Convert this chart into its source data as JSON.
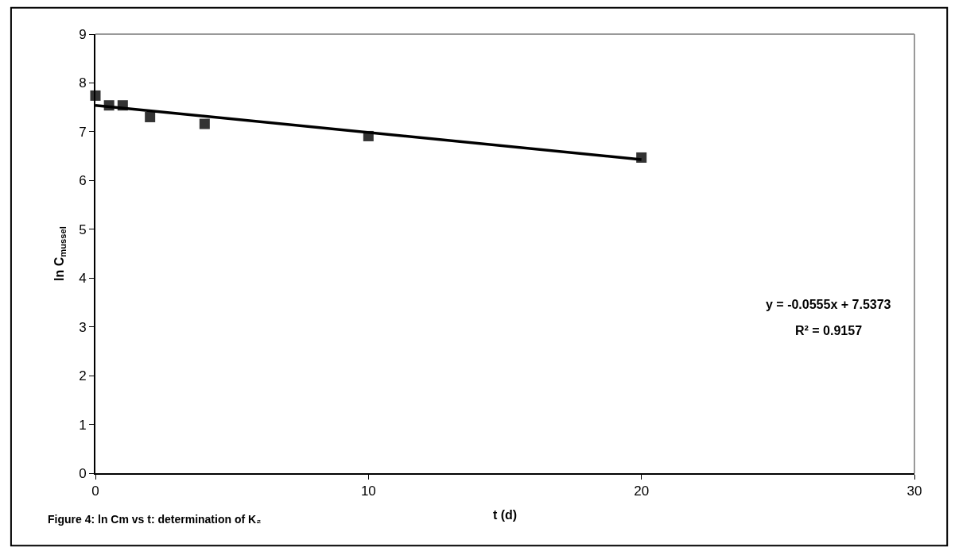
{
  "chart_data": {
    "type": "scatter",
    "xlabel": "t (d)",
    "ylabel": "ln C$_{mussel}$",
    "xlim": [
      0,
      30
    ],
    "xticks": [
      0,
      10,
      20,
      30
    ],
    "ylim": [
      0,
      9
    ],
    "yticks": [
      0,
      1,
      2,
      3,
      4,
      5,
      6,
      7,
      8,
      9
    ],
    "series": [
      {
        "color": "#333333",
        "marker": "square",
        "x": [
          0,
          0.5,
          1,
          2,
          4,
          10,
          20
        ],
        "values": [
          7.74,
          7.54,
          7.54,
          7.3,
          7.16,
          6.91,
          6.47
        ]
      },
      {
        "type": "line",
        "marker": "none",
        "color": "#000000",
        "x": [
          0,
          20
        ],
        "values": [
          7.54,
          6.43
        ]
      }
    ],
    "annotations": [
      "y = -0.0555x + 7.5373",
      "R² = 0.9157",
      "Figure 4: ln Cm vs t: determination of K₂"
    ]
  }
}
